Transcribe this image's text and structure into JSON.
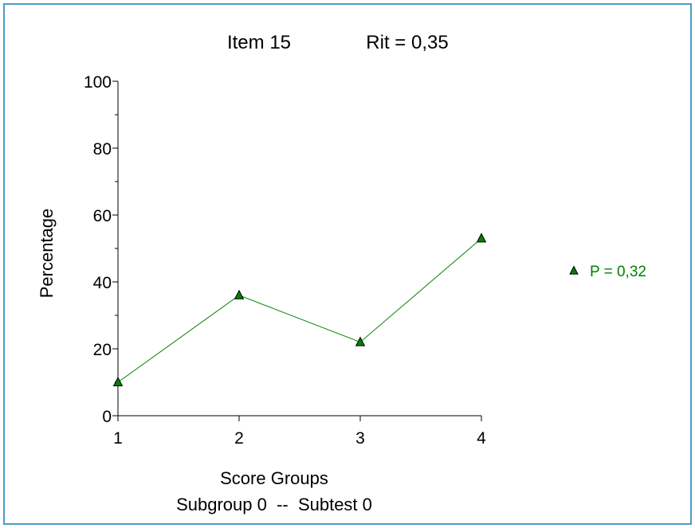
{
  "colors": {
    "frame": "#4a9cc9",
    "series": "#008000",
    "marker_fill": "#008000",
    "axis": "#000000"
  },
  "chart_data": {
    "type": "line",
    "title_item": "Item 15",
    "title_rit": "Rit = 0,35",
    "xlabel": "Score Groups",
    "xlabel_sub": "Subgroup 0  --  Subtest 0",
    "ylabel": "Percentage",
    "ylim": [
      0,
      100
    ],
    "yticks": [
      0,
      20,
      40,
      60,
      80,
      100
    ],
    "x": [
      1,
      2,
      3,
      4
    ],
    "xtick_labels": [
      "1",
      "2",
      "3",
      "4"
    ],
    "series": [
      {
        "name": "P = 0,32",
        "values": [
          10,
          36,
          22,
          53
        ],
        "marker": "triangle"
      }
    ],
    "legend_position": "right",
    "grid": false
  }
}
